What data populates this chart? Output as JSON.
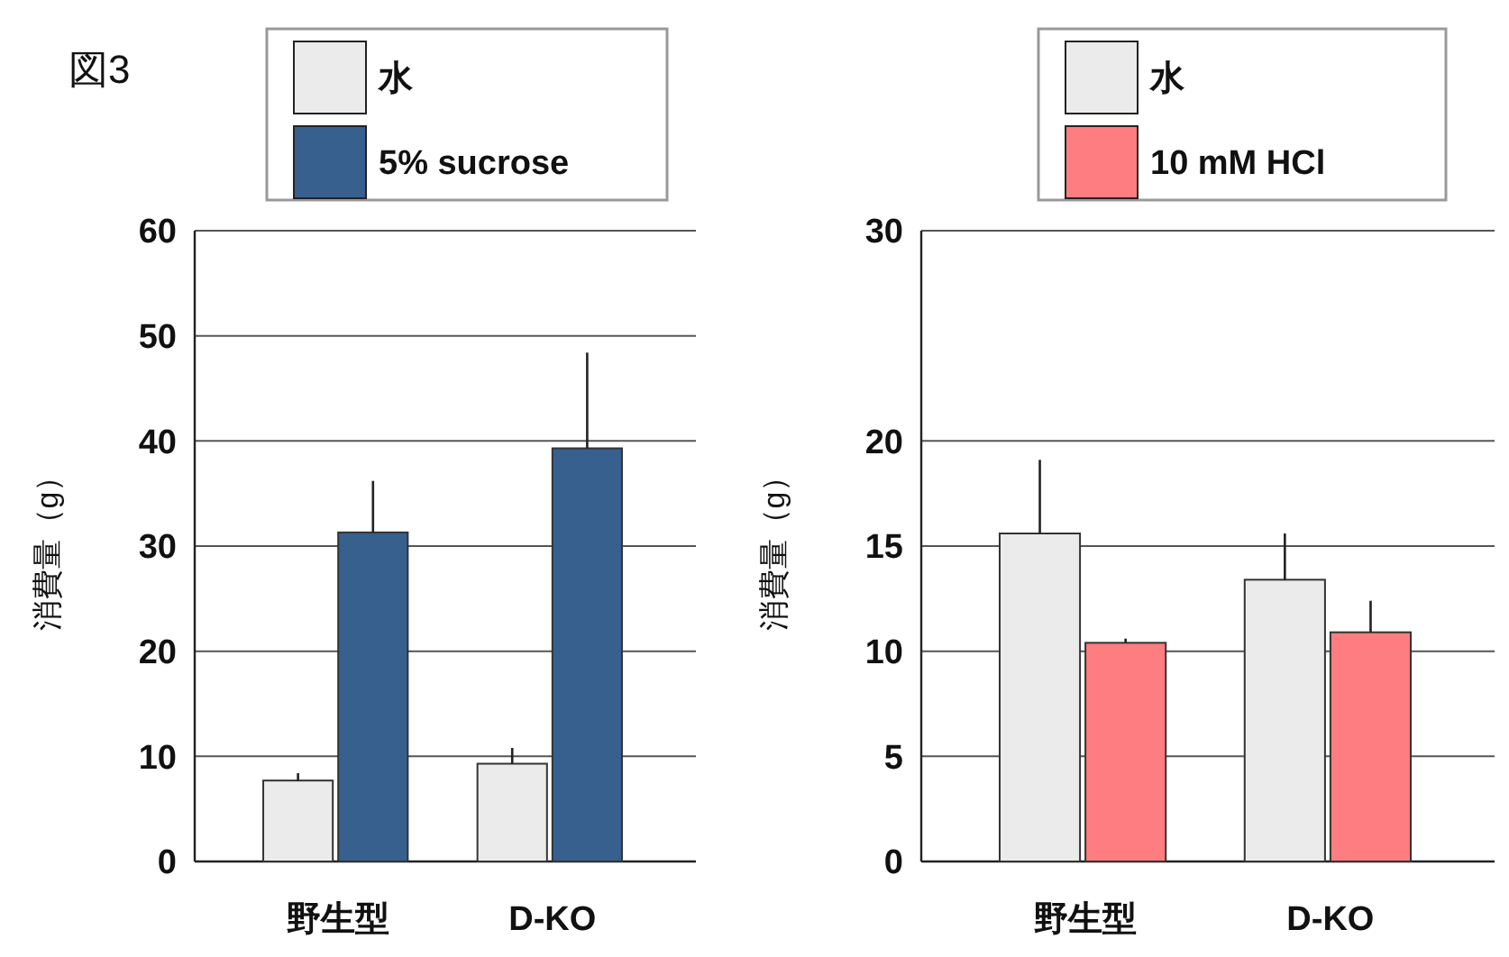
{
  "chart_data": [
    {
      "type": "bar",
      "title": "図3",
      "ylabel": "消費量（g）",
      "categories": [
        "野生型",
        "D-KO"
      ],
      "series": [
        {
          "name": "水",
          "color": "#ebebeb",
          "values": [
            7.7,
            9.3
          ],
          "errors": [
            [
              7.7,
              8.4
            ],
            [
              9.3,
              10.8
            ]
          ]
        },
        {
          "name": "5% sucrose",
          "color": "#37608f",
          "values": [
            31.3,
            39.3
          ],
          "errors": [
            [
              31.3,
              36.2
            ],
            [
              39.3,
              48.4
            ]
          ]
        }
      ],
      "ylim": [
        0,
        60
      ],
      "yticks": [
        0,
        10,
        20,
        30,
        40,
        50,
        60
      ],
      "grid": "y",
      "legend": "top"
    },
    {
      "type": "bar",
      "ylabel": "消費量（g）",
      "categories": [
        "野生型",
        "D-KO"
      ],
      "series": [
        {
          "name": "水",
          "color": "#ebebeb",
          "values": [
            15.6,
            13.4
          ],
          "errors": [
            [
              15.6,
              19.1
            ],
            [
              13.4,
              15.6
            ]
          ]
        },
        {
          "name": "10 mM HCl",
          "color": "#fd7d80",
          "values": [
            10.4,
            10.9
          ],
          "errors": [
            [
              10.4,
              10.6
            ],
            [
              10.9,
              12.4
            ]
          ]
        }
      ],
      "ylim": [
        0,
        30
      ],
      "yticks": [
        0,
        5,
        10,
        15,
        20,
        30
      ],
      "grid": "y",
      "legend": "top"
    }
  ]
}
